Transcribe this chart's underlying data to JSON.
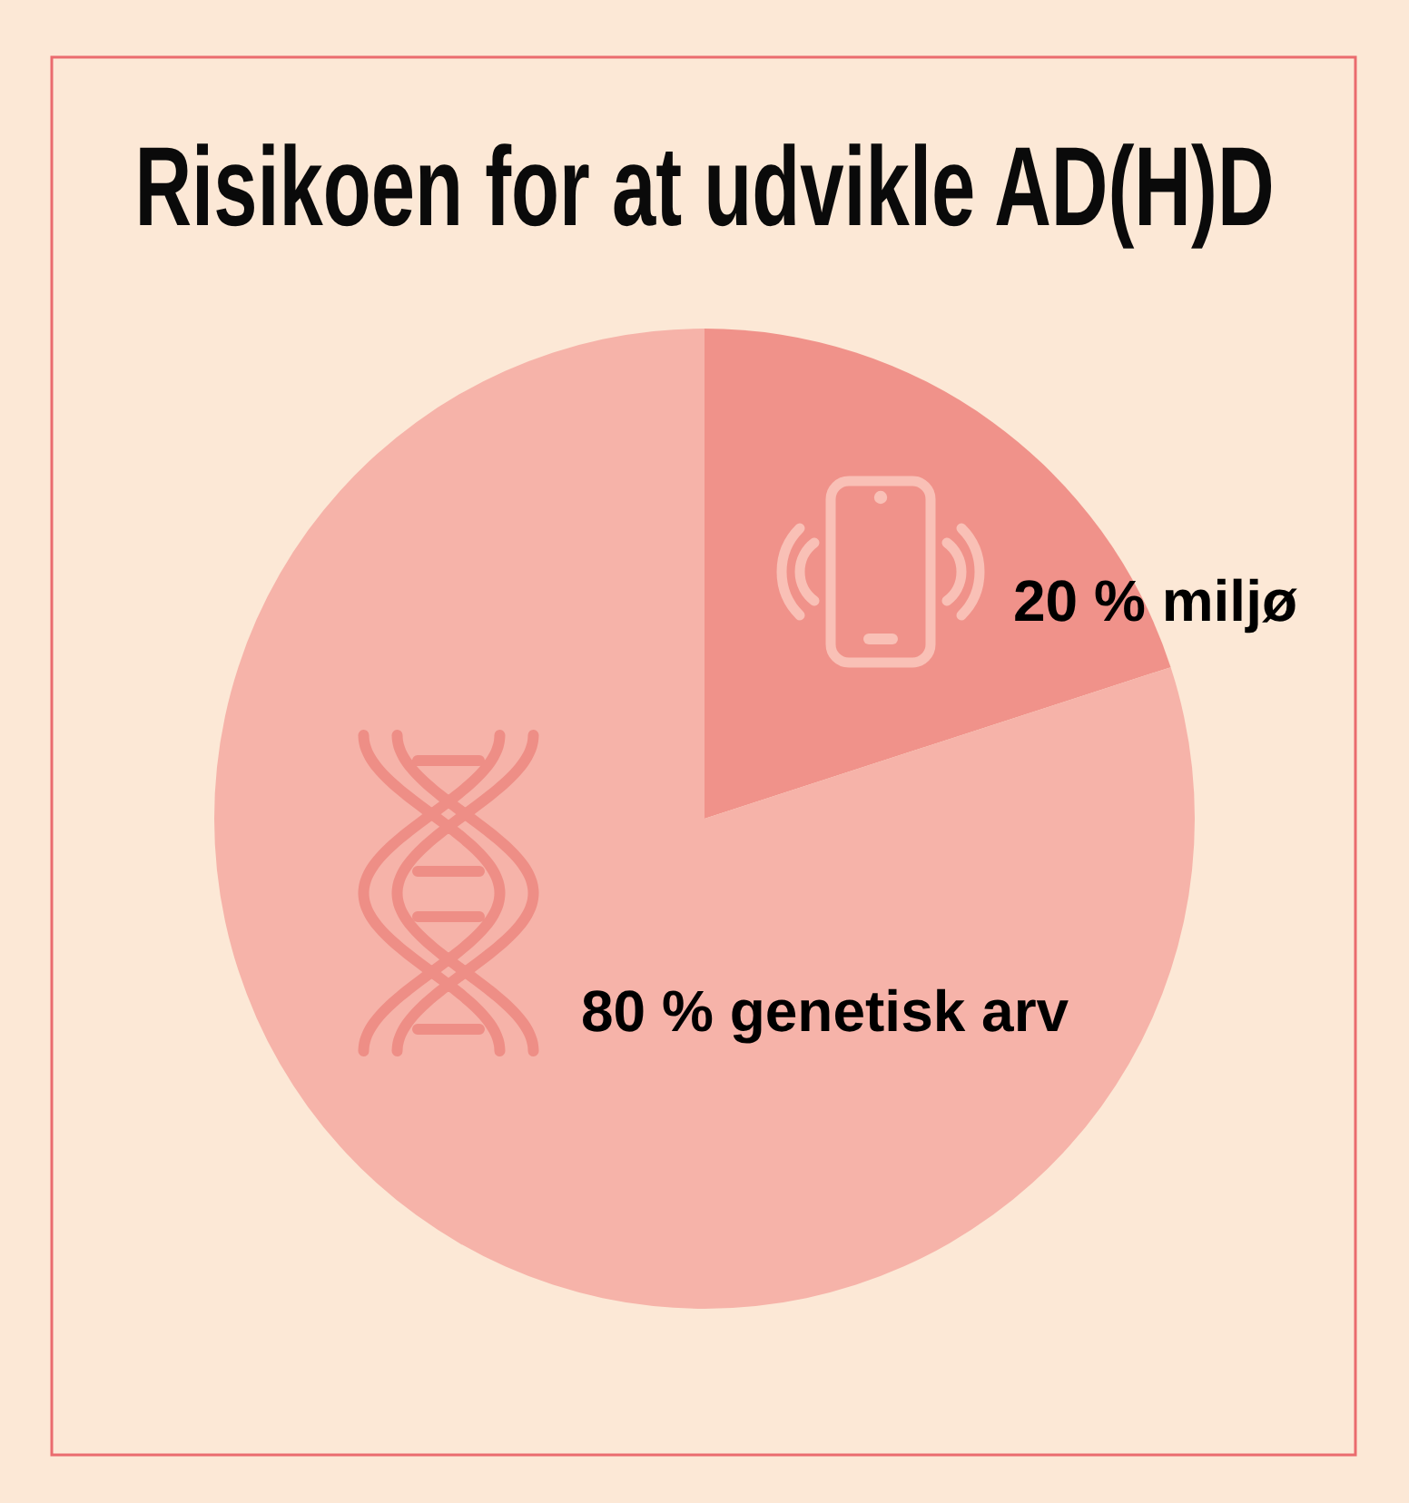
{
  "chart_data": {
    "type": "pie",
    "title": "Risikoen for at udvikle AD(H)D",
    "categories": [
      "miljø",
      "genetisk arv"
    ],
    "values": [
      20,
      80
    ],
    "value_labels": [
      "20 %",
      "80 %"
    ],
    "colors": [
      "#f0928a",
      "#f6b3a9"
    ]
  }
}
